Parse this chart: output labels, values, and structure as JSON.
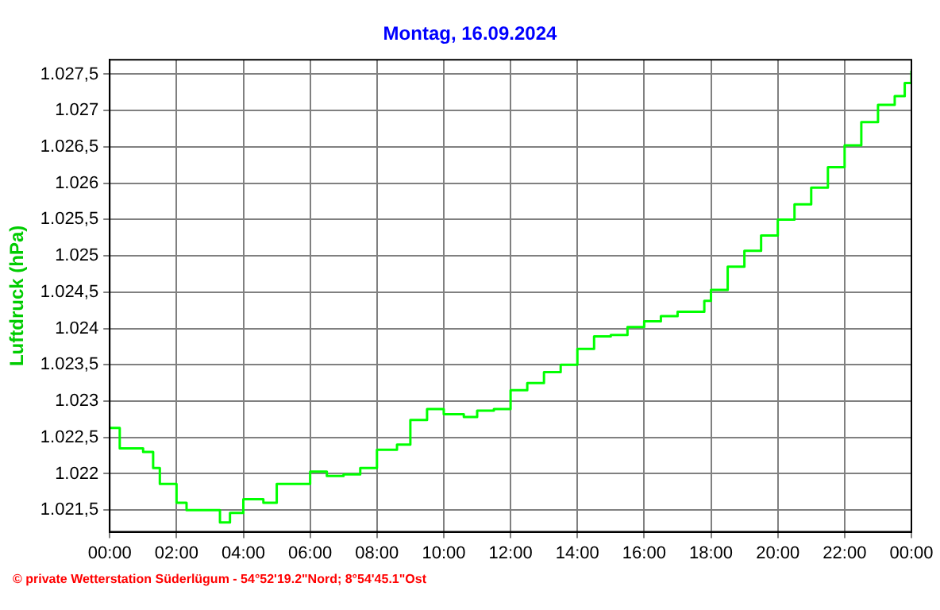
{
  "chart_data": {
    "type": "step",
    "title": "Montag, 16.09.2024",
    "ylabel": "Luftdruck (hPa)",
    "annotations": [
      "© private Wetterstation Süderlügum - 54°52'19.2\"Nord; 8°54'45.1\"Ost"
    ],
    "x": [
      0,
      0.3,
      1,
      1.3,
      1.5,
      2,
      2.3,
      3,
      3.3,
      3.6,
      4,
      4.6,
      5,
      6,
      6.5,
      7,
      7.5,
      8,
      8.6,
      9,
      9.5,
      10,
      10.6,
      11,
      11.5,
      12,
      12.5,
      13,
      13.5,
      14,
      14.5,
      15,
      15.5,
      16,
      16.5,
      17,
      17.5,
      17.8,
      18,
      18.5,
      19,
      19.5,
      20,
      20.5,
      21,
      21.5,
      22,
      22.5,
      23,
      23.5,
      23.8,
      24
    ],
    "series": [
      {
        "color": "#00ff00",
        "values": [
          1022.63,
          1022.35,
          1022.3,
          1022.08,
          1021.86,
          1021.6,
          1021.5,
          1021.5,
          1021.33,
          1021.46,
          1021.65,
          1021.6,
          1021.86,
          1022.03,
          1021.97,
          1021.99,
          1022.08,
          1022.33,
          1022.4,
          1022.74,
          1022.89,
          1022.82,
          1022.78,
          1022.87,
          1022.89,
          1023.15,
          1023.25,
          1023.4,
          1023.5,
          1023.72,
          1023.89,
          1023.91,
          1024.02,
          1024.1,
          1024.17,
          1024.23,
          1024.23,
          1024.38,
          1024.53,
          1024.85,
          1025.07,
          1025.28,
          1025.5,
          1025.71,
          1025.94,
          1026.22,
          1026.52,
          1026.84,
          1027.08,
          1027.2,
          1027.38,
          1027.55
        ]
      }
    ],
    "xlim": [
      0,
      24
    ],
    "xticks": [
      {
        "value": 0,
        "label": "00:00"
      },
      {
        "value": 2,
        "label": "02:00"
      },
      {
        "value": 4,
        "label": "04:00"
      },
      {
        "value": 6,
        "label": "06:00"
      },
      {
        "value": 8,
        "label": "08:00"
      },
      {
        "value": 10,
        "label": "10:00"
      },
      {
        "value": 12,
        "label": "12:00"
      },
      {
        "value": 14,
        "label": "14:00"
      },
      {
        "value": 16,
        "label": "16:00"
      },
      {
        "value": 18,
        "label": "18:00"
      },
      {
        "value": 20,
        "label": "20:00"
      },
      {
        "value": 22,
        "label": "22:00"
      },
      {
        "value": 24,
        "label": "00:00"
      }
    ],
    "ylim": [
      1021.2,
      1027.7
    ],
    "yticks": [
      {
        "value": 1021.5,
        "label": "1.021,5"
      },
      {
        "value": 1022,
        "label": "1.022"
      },
      {
        "value": 1022.5,
        "label": "1.022,5"
      },
      {
        "value": 1023,
        "label": "1.023"
      },
      {
        "value": 1023.5,
        "label": "1.023,5"
      },
      {
        "value": 1024,
        "label": "1.024"
      },
      {
        "value": 1024.5,
        "label": "1.024,5"
      },
      {
        "value": 1025,
        "label": "1.025"
      },
      {
        "value": 1025.5,
        "label": "1.025,5"
      },
      {
        "value": 1026,
        "label": "1.026"
      },
      {
        "value": 1026.5,
        "label": "1.026,5"
      },
      {
        "value": 1027,
        "label": "1.027"
      },
      {
        "value": 1027.5,
        "label": "1.027,5"
      }
    ],
    "grid": true,
    "legend": false,
    "marker": "none",
    "line_style": "solid"
  }
}
